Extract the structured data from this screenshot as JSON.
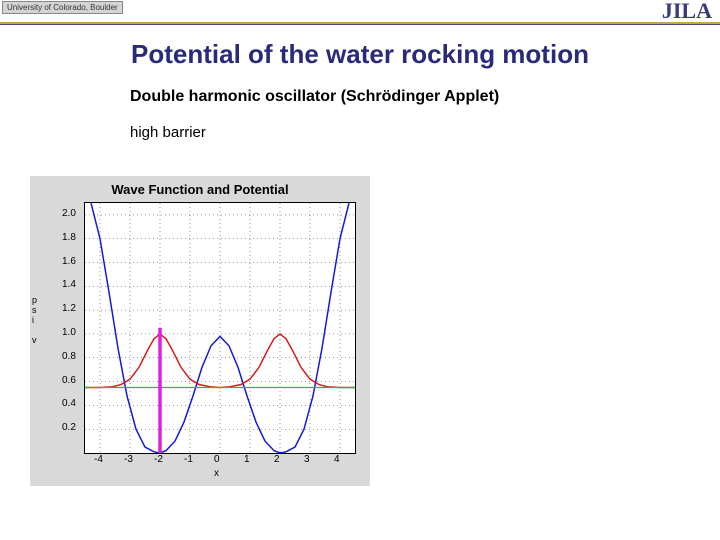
{
  "header": {
    "cu_text": "University of Colorado, Boulder",
    "jila_text": "JILA"
  },
  "title": "Potential of the water rocking motion",
  "subtitle": "Double harmonic oscillator (Schrödinger Applet)",
  "barrier_label": "high barrier",
  "chart": {
    "title": "Wave Function and Potential",
    "type": "line",
    "background_color": "#d9d9d9",
    "plot_background": "#ffffff",
    "grid_color": "#000000",
    "xlabel": "x",
    "ylabel_lines": [
      "p",
      "s",
      "i",
      "",
      "v"
    ],
    "xlim": [
      -4.5,
      4.5
    ],
    "ylim": [
      0,
      2.1
    ],
    "xticks": [
      -4,
      -3,
      -2,
      -1,
      0,
      1,
      2,
      3,
      4
    ],
    "yticks": [
      0.2,
      0.4,
      0.6,
      0.8,
      1.0,
      1.2,
      1.4,
      1.6,
      1.8,
      2.0
    ],
    "series": [
      {
        "name": "potential",
        "color": "#1818d8",
        "width": 1.5,
        "points": [
          [
            -4.3,
            2.1
          ],
          [
            -4.0,
            1.8
          ],
          [
            -3.7,
            1.35
          ],
          [
            -3.4,
            0.88
          ],
          [
            -3.1,
            0.48
          ],
          [
            -2.8,
            0.2
          ],
          [
            -2.5,
            0.05
          ],
          [
            -2.2,
            0.01
          ],
          [
            -2.0,
            0.0
          ],
          [
            -1.8,
            0.02
          ],
          [
            -1.5,
            0.1
          ],
          [
            -1.2,
            0.26
          ],
          [
            -0.9,
            0.48
          ],
          [
            -0.6,
            0.72
          ],
          [
            -0.3,
            0.9
          ],
          [
            0.0,
            0.98
          ],
          [
            0.3,
            0.9
          ],
          [
            0.6,
            0.72
          ],
          [
            0.9,
            0.48
          ],
          [
            1.2,
            0.26
          ],
          [
            1.5,
            0.1
          ],
          [
            1.8,
            0.02
          ],
          [
            2.0,
            0.0
          ],
          [
            2.2,
            0.01
          ],
          [
            2.5,
            0.05
          ],
          [
            2.8,
            0.2
          ],
          [
            3.1,
            0.48
          ],
          [
            3.4,
            0.88
          ],
          [
            3.7,
            1.35
          ],
          [
            4.0,
            1.8
          ],
          [
            4.3,
            2.1
          ]
        ]
      },
      {
        "name": "wavefunction",
        "color": "#d81818",
        "width": 1.5,
        "points": [
          [
            -4.5,
            0.55
          ],
          [
            -4.0,
            0.55
          ],
          [
            -3.6,
            0.555
          ],
          [
            -3.3,
            0.575
          ],
          [
            -3.0,
            0.62
          ],
          [
            -2.7,
            0.72
          ],
          [
            -2.4,
            0.87
          ],
          [
            -2.2,
            0.96
          ],
          [
            -2.0,
            1.0
          ],
          [
            -1.8,
            0.96
          ],
          [
            -1.6,
            0.87
          ],
          [
            -1.3,
            0.72
          ],
          [
            -1.0,
            0.62
          ],
          [
            -0.7,
            0.575
          ],
          [
            -0.3,
            0.555
          ],
          [
            0.0,
            0.55
          ],
          [
            0.3,
            0.555
          ],
          [
            0.7,
            0.575
          ],
          [
            1.0,
            0.62
          ],
          [
            1.3,
            0.72
          ],
          [
            1.6,
            0.87
          ],
          [
            1.8,
            0.96
          ],
          [
            2.0,
            1.0
          ],
          [
            2.2,
            0.96
          ],
          [
            2.4,
            0.87
          ],
          [
            2.7,
            0.72
          ],
          [
            3.0,
            0.62
          ],
          [
            3.3,
            0.575
          ],
          [
            3.6,
            0.555
          ],
          [
            4.0,
            0.55
          ],
          [
            4.5,
            0.55
          ]
        ]
      },
      {
        "name": "energy-level",
        "color": "#18c818",
        "width": 1.2,
        "points": [
          [
            -4.5,
            0.55
          ],
          [
            4.5,
            0.55
          ]
        ]
      },
      {
        "name": "marker-line",
        "color": "#e020e0",
        "width": 3.5,
        "points": [
          [
            -2.0,
            0.0
          ],
          [
            -2.0,
            1.05
          ]
        ]
      }
    ],
    "label_fontsize": 10,
    "title_fontsize": 13
  }
}
